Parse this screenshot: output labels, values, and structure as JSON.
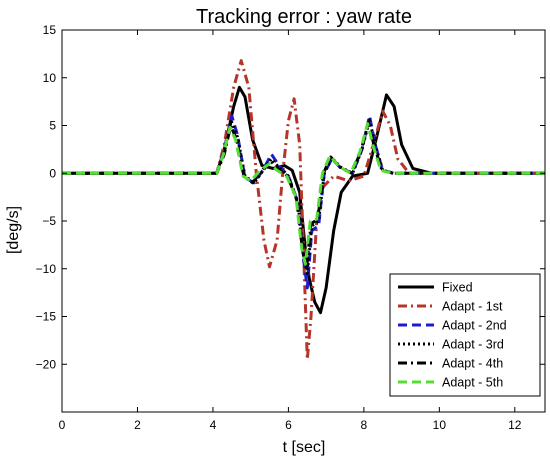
{
  "chart_data": {
    "type": "line",
    "title": "Tracking error : yaw rate",
    "xlabel": "t [sec]",
    "ylabel": "[deg/s]",
    "xlim": [
      0,
      12.8
    ],
    "ylim": [
      -25,
      15
    ],
    "xticks": [
      0,
      2,
      4,
      6,
      8,
      10,
      12
    ],
    "yticks": [
      -20,
      -15,
      -10,
      -5,
      0,
      5,
      10,
      15
    ],
    "grid": false,
    "legend_position": "bottom-right",
    "series": [
      {
        "name": "Fixed",
        "color": "#000000",
        "style": "solid",
        "points": [
          [
            0,
            0
          ],
          [
            4.1,
            0
          ],
          [
            4.3,
            2.5
          ],
          [
            4.55,
            7
          ],
          [
            4.7,
            9
          ],
          [
            4.85,
            8
          ],
          [
            5.05,
            3.5
          ],
          [
            5.3,
            0.8
          ],
          [
            5.6,
            0.5
          ],
          [
            5.9,
            0.8
          ],
          [
            6.1,
            0.3
          ],
          [
            6.3,
            -2
          ],
          [
            6.45,
            -8
          ],
          [
            6.55,
            -11
          ],
          [
            6.7,
            -13.5
          ],
          [
            6.85,
            -14.6
          ],
          [
            7.0,
            -12
          ],
          [
            7.2,
            -6
          ],
          [
            7.4,
            -2
          ],
          [
            7.7,
            -0.3
          ],
          [
            8.1,
            0
          ],
          [
            8.35,
            4
          ],
          [
            8.6,
            8.2
          ],
          [
            8.8,
            7
          ],
          [
            9.0,
            3
          ],
          [
            9.3,
            0.5
          ],
          [
            9.8,
            0
          ],
          [
            12.8,
            0
          ]
        ]
      },
      {
        "name": "Adapt - 1st",
        "color": "#b7342a",
        "style": "dashdot",
        "points": [
          [
            0,
            0
          ],
          [
            4.1,
            0
          ],
          [
            4.3,
            3
          ],
          [
            4.55,
            9
          ],
          [
            4.75,
            11.8
          ],
          [
            4.95,
            9
          ],
          [
            5.15,
            0
          ],
          [
            5.35,
            -7
          ],
          [
            5.5,
            -9.8
          ],
          [
            5.7,
            -7
          ],
          [
            5.85,
            0
          ],
          [
            6.0,
            5.5
          ],
          [
            6.15,
            7.8
          ],
          [
            6.3,
            3
          ],
          [
            6.4,
            -8
          ],
          [
            6.5,
            -19.5
          ],
          [
            6.6,
            -15
          ],
          [
            6.75,
            -5
          ],
          [
            6.9,
            -1.5
          ],
          [
            7.2,
            -0.3
          ],
          [
            7.6,
            -0.8
          ],
          [
            8.0,
            -0.3
          ],
          [
            8.25,
            3
          ],
          [
            8.5,
            6.5
          ],
          [
            8.7,
            5
          ],
          [
            8.9,
            1.5
          ],
          [
            9.2,
            0
          ],
          [
            12.8,
            0
          ]
        ]
      },
      {
        "name": "Adapt - 2nd",
        "color": "#1c1ccc",
        "style": "dashed",
        "points": [
          [
            0,
            0
          ],
          [
            4.1,
            0
          ],
          [
            4.3,
            2.5
          ],
          [
            4.5,
            6
          ],
          [
            4.65,
            4
          ],
          [
            4.85,
            -0.5
          ],
          [
            5.1,
            -1
          ],
          [
            5.35,
            0.5
          ],
          [
            5.55,
            2
          ],
          [
            5.75,
            0.8
          ],
          [
            6.0,
            -0.3
          ],
          [
            6.25,
            -3
          ],
          [
            6.4,
            -9
          ],
          [
            6.5,
            -12
          ],
          [
            6.62,
            -6
          ],
          [
            6.8,
            -5.5
          ],
          [
            6.95,
            0
          ],
          [
            7.15,
            1.5
          ],
          [
            7.4,
            0.5
          ],
          [
            7.7,
            0
          ],
          [
            7.95,
            2.5
          ],
          [
            8.15,
            6
          ],
          [
            8.3,
            3
          ],
          [
            8.5,
            0.3
          ],
          [
            8.8,
            0
          ],
          [
            12.8,
            0
          ]
        ]
      },
      {
        "name": "Adapt - 3rd",
        "color": "#000000",
        "style": "dotted",
        "points": [
          [
            0,
            0
          ],
          [
            4.1,
            0
          ],
          [
            4.3,
            2.2
          ],
          [
            4.48,
            5.5
          ],
          [
            4.65,
            3.8
          ],
          [
            4.85,
            -0.3
          ],
          [
            5.1,
            -1
          ],
          [
            5.35,
            0.4
          ],
          [
            5.55,
            1.5
          ],
          [
            5.75,
            0.6
          ],
          [
            6.0,
            -0.3
          ],
          [
            6.25,
            -3
          ],
          [
            6.4,
            -8.5
          ],
          [
            6.5,
            -10.5
          ],
          [
            6.62,
            -5.5
          ],
          [
            6.8,
            -5
          ],
          [
            6.95,
            0
          ],
          [
            7.15,
            1.6
          ],
          [
            7.4,
            0.6
          ],
          [
            7.7,
            0
          ],
          [
            7.95,
            2.5
          ],
          [
            8.15,
            5.6
          ],
          [
            8.3,
            3
          ],
          [
            8.5,
            0.3
          ],
          [
            8.8,
            0
          ],
          [
            12.8,
            0
          ]
        ]
      },
      {
        "name": "Adapt - 4th",
        "color": "#000000",
        "style": "dashdot",
        "points": [
          [
            0,
            0
          ],
          [
            4.1,
            0
          ],
          [
            4.3,
            2
          ],
          [
            4.47,
            5
          ],
          [
            4.63,
            3.5
          ],
          [
            4.82,
            -0.3
          ],
          [
            5.05,
            -1
          ],
          [
            5.3,
            0.3
          ],
          [
            5.52,
            1.3
          ],
          [
            5.72,
            0.5
          ],
          [
            5.98,
            -0.3
          ],
          [
            6.22,
            -2.8
          ],
          [
            6.38,
            -8.2
          ],
          [
            6.48,
            -10
          ],
          [
            6.6,
            -5.3
          ],
          [
            6.78,
            -4.8
          ],
          [
            6.93,
            0
          ],
          [
            7.12,
            1.7
          ],
          [
            7.38,
            0.6
          ],
          [
            7.68,
            0
          ],
          [
            7.92,
            2.3
          ],
          [
            8.12,
            5.3
          ],
          [
            8.28,
            2.8
          ],
          [
            8.48,
            0.3
          ],
          [
            8.78,
            0
          ],
          [
            12.8,
            0
          ]
        ]
      },
      {
        "name": "Adapt - 5th",
        "color": "#55dd33",
        "style": "dashed",
        "points": [
          [
            0,
            0
          ],
          [
            4.1,
            0
          ],
          [
            4.28,
            2
          ],
          [
            4.45,
            4.8
          ],
          [
            4.6,
            3.5
          ],
          [
            4.8,
            -0.3
          ],
          [
            5.0,
            -0.8
          ],
          [
            5.25,
            0.3
          ],
          [
            5.5,
            1
          ],
          [
            5.7,
            0.3
          ],
          [
            5.95,
            -0.3
          ],
          [
            6.2,
            -2.5
          ],
          [
            6.35,
            -7.8
          ],
          [
            6.45,
            -9.5
          ],
          [
            6.58,
            -5
          ],
          [
            6.75,
            -4.8
          ],
          [
            6.9,
            0
          ],
          [
            7.1,
            1.8
          ],
          [
            7.35,
            0.7
          ],
          [
            7.65,
            0
          ],
          [
            7.9,
            2.3
          ],
          [
            8.1,
            5.2
          ],
          [
            8.25,
            2.8
          ],
          [
            8.45,
            0.3
          ],
          [
            8.75,
            0
          ],
          [
            12.8,
            0
          ]
        ]
      }
    ]
  }
}
